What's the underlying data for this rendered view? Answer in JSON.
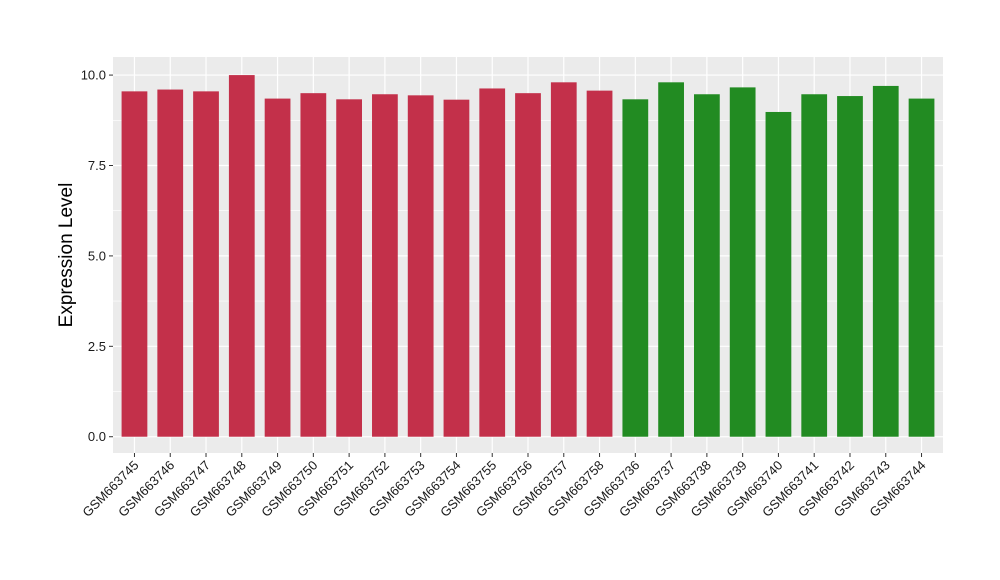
{
  "chart_data": {
    "type": "bar",
    "title": "",
    "xlabel": "",
    "ylabel": "Expression Level",
    "ylim": [
      -0.45,
      10.5
    ],
    "yticks": [
      0.0,
      2.5,
      5.0,
      7.5,
      10.0
    ],
    "ytick_labels": [
      "0.0",
      "2.5",
      "5.0",
      "7.5",
      "10.0"
    ],
    "grid": true,
    "legend": "none",
    "colors": {
      "panel": "#EBEBEB",
      "grid": "#FFFFFF",
      "group_a": "#C3304A",
      "group_b": "#228B22"
    },
    "categories": [
      "GSM663745",
      "GSM663746",
      "GSM663747",
      "GSM663748",
      "GSM663749",
      "GSM663750",
      "GSM663751",
      "GSM663752",
      "GSM663753",
      "GSM663754",
      "GSM663755",
      "GSM663756",
      "GSM663757",
      "GSM663758",
      "GSM663736",
      "GSM663737",
      "GSM663738",
      "GSM663739",
      "GSM663740",
      "GSM663741",
      "GSM663742",
      "GSM663743",
      "GSM663744"
    ],
    "values": [
      9.55,
      9.6,
      9.55,
      10.0,
      9.35,
      9.5,
      9.33,
      9.47,
      9.44,
      9.32,
      9.63,
      9.5,
      9.8,
      9.57,
      9.33,
      9.8,
      9.47,
      9.66,
      8.98,
      9.47,
      9.42,
      9.7,
      9.35
    ],
    "bar_colors": [
      "#C3304A",
      "#C3304A",
      "#C3304A",
      "#C3304A",
      "#C3304A",
      "#C3304A",
      "#C3304A",
      "#C3304A",
      "#C3304A",
      "#C3304A",
      "#C3304A",
      "#C3304A",
      "#C3304A",
      "#C3304A",
      "#228B22",
      "#228B22",
      "#228B22",
      "#228B22",
      "#228B22",
      "#228B22",
      "#228B22",
      "#228B22",
      "#228B22"
    ]
  }
}
